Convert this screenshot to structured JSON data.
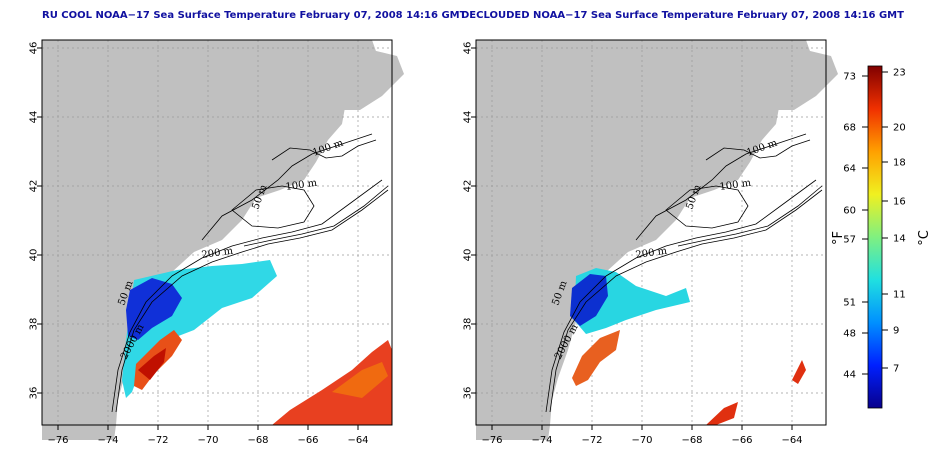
{
  "panels": [
    {
      "title": "RU COOL NOAA−17 Sea Surface Temperature February 07, 2008 14:16 GMT",
      "kind": "raw"
    },
    {
      "title": "DECLOUDED NOAA−17 Sea Surface Temperature February 07, 2008 14:16 GMT",
      "kind": "declouded"
    }
  ],
  "axes": {
    "lon_ticks": [
      "−76",
      "−74",
      "−72",
      "−70",
      "−68",
      "−66",
      "−64"
    ],
    "lat_ticks": [
      "36",
      "38",
      "40",
      "42",
      "44",
      "46"
    ]
  },
  "contour_labels": {
    "c100a": "100 m",
    "c100b": "100 m",
    "c50a": "50 m",
    "c200": "200 m",
    "c50b": "50 m",
    "c2000": "2000 m"
  },
  "colorbar": {
    "fahrenheit_ticks": [
      "73",
      "68",
      "64",
      "60",
      "57",
      "51",
      "48",
      "44"
    ],
    "celsius_ticks": [
      "23",
      "20",
      "18",
      "16",
      "14",
      "11",
      "9",
      "7"
    ],
    "f_unit": "°F",
    "c_unit": "°C",
    "stops": [
      "#08008c",
      "#0020ff",
      "#0090ff",
      "#20e0e0",
      "#80f080",
      "#f0f020",
      "#ffa000",
      "#f03000",
      "#800000"
    ]
  },
  "colors": {
    "land": "#c0c0c0",
    "sea": "#ffffff",
    "grid": "#9a9a9a"
  }
}
